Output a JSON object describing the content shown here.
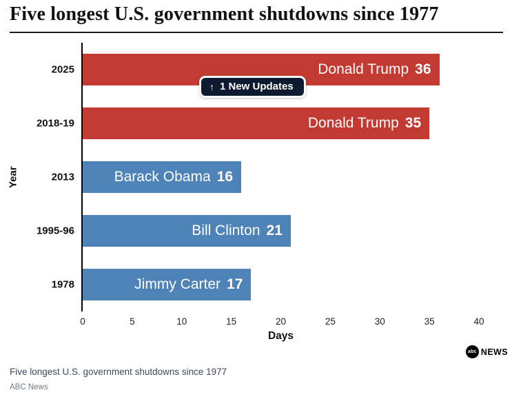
{
  "header": {
    "title": "Five longest U.S. government shutdowns since 1977"
  },
  "chart_data": {
    "type": "bar",
    "orientation": "horizontal",
    "title": "Five longest U.S. government shutdowns since 1977",
    "categories": [
      "2025",
      "2018-19",
      "2013",
      "1995-96",
      "1978"
    ],
    "values": [
      36,
      35,
      16,
      21,
      17
    ],
    "bar_labels": [
      "Donald Trump",
      "Donald Trump",
      "Barack Obama",
      "Bill Clinton",
      "Jimmy Carter"
    ],
    "bar_colors": [
      "#c23a31",
      "#c23a31",
      "#4d83b7",
      "#4d83b7",
      "#4d83b7"
    ],
    "xlabel": "Days",
    "ylabel": "Year",
    "xlim": [
      0,
      40
    ],
    "xticks": [
      0,
      5,
      10,
      15,
      20,
      25,
      30,
      35,
      40
    ],
    "grid": false,
    "legend": false
  },
  "notification": {
    "arrow": "↑",
    "label": "1 New Updates"
  },
  "logo": {
    "circle_text": "abc",
    "wordmark": "NEWS"
  },
  "footer": {
    "caption": "Five longest U.S. government shutdowns since 1977",
    "source": "ABC News"
  }
}
